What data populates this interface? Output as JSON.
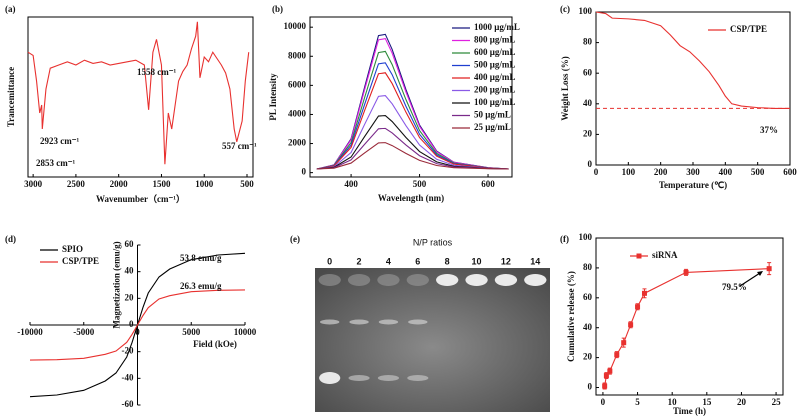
{
  "chart_data": [
    {
      "type": "line",
      "label": "(a)",
      "xlabel": "Wavenumber（cm⁻¹）",
      "ylabel": "Trancemittance",
      "xlim": [
        3060,
        430
      ],
      "ylim": [
        0,
        100
      ],
      "xticks": [
        3000,
        2500,
        2000,
        1500,
        1000,
        500
      ],
      "x": [
        3060,
        3000,
        2960,
        2923,
        2900,
        2893,
        2850,
        2800,
        2700,
        2600,
        2500,
        2400,
        2300,
        2200,
        2100,
        2000,
        1900,
        1800,
        1700,
        1650,
        1600,
        1558,
        1500,
        1460,
        1420,
        1380,
        1300,
        1250,
        1200,
        1150,
        1100,
        1080,
        1050,
        1000,
        950,
        900,
        800,
        750,
        700,
        650,
        620,
        557,
        520,
        480
      ],
      "series": [
        {
          "color": "#e8312f",
          "values": [
            78,
            76,
            60,
            40,
            45,
            30,
            55,
            68,
            70,
            72,
            70,
            73,
            71,
            72,
            70,
            71,
            72,
            73,
            70,
            42,
            78,
            86,
            70,
            8,
            40,
            30,
            60,
            66,
            70,
            80,
            88,
            97,
            62,
            75,
            72,
            78,
            70,
            65,
            55,
            30,
            22,
            35,
            60,
            78
          ]
        }
      ],
      "annotations": [
        "2923 cm⁻¹",
        "2853 cm⁻¹",
        "1558 cm⁻¹",
        "557 cm⁻¹"
      ]
    },
    {
      "type": "line",
      "label": "(b)",
      "xlabel": "Wavelength (nm)",
      "ylabel": "PL Intensity",
      "xlim": [
        340,
        635
      ],
      "ylim": [
        -300,
        10700
      ],
      "xticks": [
        400,
        500,
        600
      ],
      "yticks": [
        0,
        2000,
        4000,
        6000,
        8000,
        10000
      ],
      "x": [
        350,
        375,
        400,
        420,
        440,
        450,
        460,
        480,
        500,
        525,
        550,
        600,
        630
      ],
      "series": [
        {
          "name": "1000 μg/mL",
          "color": "#1a1a80",
          "values": [
            250,
            530,
            2330,
            5920,
            9420,
            9510,
            8470,
            5730,
            3270,
            1480,
            720,
            340,
            250
          ]
        },
        {
          "name": "800 μg/mL",
          "color": "#e020e0",
          "values": [
            250,
            525,
            2263,
            5740,
            9126,
            9217,
            8211,
            5557,
            3178,
            1440,
            708,
            342,
            250
          ]
        },
        {
          "name": "600 μg/mL",
          "color": "#2e8b3a",
          "values": [
            250,
            498,
            2065,
            5200,
            8253,
            8335,
            7428,
            5035,
            2890,
            1323,
            663,
            333,
            250
          ]
        },
        {
          "name": "500 μg/mL",
          "color": "#1f3fd0",
          "values": [
            250,
            474,
            1889,
            4720,
            7477,
            7551,
            6732,
            4571,
            2634,
            1219,
            623,
            325,
            250
          ]
        },
        {
          "name": "400 μg/mL",
          "color": "#e02020",
          "values": [
            250,
            453,
            1735,
            4300,
            6798,
            6865,
            6123,
            4165,
            2410,
            1128,
            588,
            318,
            250
          ]
        },
        {
          "name": "200 μg/mL",
          "color": "#8a5ae6",
          "values": [
            250,
            405,
            1383,
            3340,
            5246,
            5297,
            4731,
            3237,
            1898,
            920,
            508,
            302,
            250
          ]
        },
        {
          "name": "100 μg/mL",
          "color": "#111111",
          "values": [
            250,
            363,
            1075,
            2500,
            3888,
            3925,
            3513,
            2425,
            1450,
            738,
            438,
            288,
            250
          ]
        },
        {
          "name": "50 μg/mL",
          "color": "#7a2a8a",
          "values": [
            250,
            336,
            877,
            1960,
            3015,
            3043,
            2730,
            1903,
            1162,
            621,
            393,
            279,
            250
          ]
        },
        {
          "name": "25 μg/mL",
          "color": "#9a2a3a",
          "values": [
            250,
            306,
            657,
            1360,
            2045,
            2063,
            1860,
            1323,
            842,
            491,
            343,
            269,
            250
          ]
        }
      ]
    },
    {
      "type": "line",
      "label": "(c)",
      "xlabel": "Temperature (℃)",
      "ylabel": "Weight Loss (%)",
      "xlim": [
        0,
        600
      ],
      "ylim": [
        0,
        100
      ],
      "xticks": [
        0,
        100,
        200,
        300,
        400,
        500,
        600
      ],
      "yticks": [
        0,
        20,
        40,
        60,
        80,
        100
      ],
      "x": [
        0,
        30,
        50,
        100,
        150,
        200,
        230,
        260,
        290,
        320,
        350,
        380,
        400,
        420,
        450,
        500,
        550,
        600
      ],
      "series": [
        {
          "name": "CSP/TPE",
          "color": "#e8312f",
          "values": [
            100,
            99,
            96,
            95.5,
            94.5,
            91,
            85,
            78,
            74,
            68,
            61,
            52,
            45,
            40,
            38.5,
            37.5,
            37,
            37
          ]
        }
      ],
      "hline": 37,
      "annotations": [
        "37%"
      ]
    },
    {
      "type": "line",
      "label": "(d)",
      "xlabel": "Field (kOe)",
      "ylabel": "Magnetization (emu/g)",
      "spines": "center",
      "xlim": [
        -10000,
        10000
      ],
      "ylim": [
        -60,
        60
      ],
      "xticks": [
        -10000,
        -5000,
        0,
        5000,
        10000
      ],
      "yticks": [
        -60,
        -40,
        -20,
        0,
        20,
        40,
        60
      ],
      "x": [
        -10000,
        -7500,
        -5000,
        -3000,
        -2000,
        -1000,
        -500,
        0,
        500,
        1000,
        2000,
        3000,
        5000,
        7500,
        10000
      ],
      "series": [
        {
          "name": "SPIO",
          "color": "#000000",
          "values": [
            -53.8,
            -52.5,
            -49,
            -42,
            -36,
            -24,
            -13,
            0,
            13,
            24,
            36,
            42,
            49,
            52.5,
            53.8
          ]
        },
        {
          "name": "CSP/TPE",
          "color": "#e8312f",
          "values": [
            -26.3,
            -26,
            -25,
            -22,
            -19.5,
            -13,
            -7,
            0,
            7,
            13,
            19.5,
            22,
            25,
            26,
            26.3
          ]
        }
      ],
      "annotations": [
        "53.8 emu/g",
        "26.3 emu/g"
      ]
    },
    {
      "type": "gel",
      "label": "(e)",
      "title": "N/P ratios",
      "categories": [
        "0",
        "2",
        "4",
        "6",
        "8",
        "10",
        "12",
        "14"
      ]
    },
    {
      "type": "line",
      "label": "(f)",
      "xlabel": "Time (h)",
      "ylabel": "Cumulative release (%)",
      "xlim": [
        -1,
        26
      ],
      "ylim": [
        -5,
        100
      ],
      "xticks": [
        0,
        5,
        10,
        15,
        20,
        25
      ],
      "yticks": [
        0,
        20,
        40,
        60,
        80,
        100
      ],
      "x": [
        0.25,
        0.5,
        1,
        2,
        3,
        4,
        5,
        6,
        12,
        24
      ],
      "series": [
        {
          "name": "siRNA",
          "color": "#e8312f",
          "marker": "square",
          "values": [
            1,
            8,
            11,
            22,
            30,
            42,
            54,
            63,
            77,
            79.5
          ],
          "errors": [
            2,
            2,
            2,
            2,
            3,
            2,
            2,
            3,
            2,
            4
          ]
        }
      ],
      "annotations": [
        "79.5%"
      ]
    }
  ]
}
